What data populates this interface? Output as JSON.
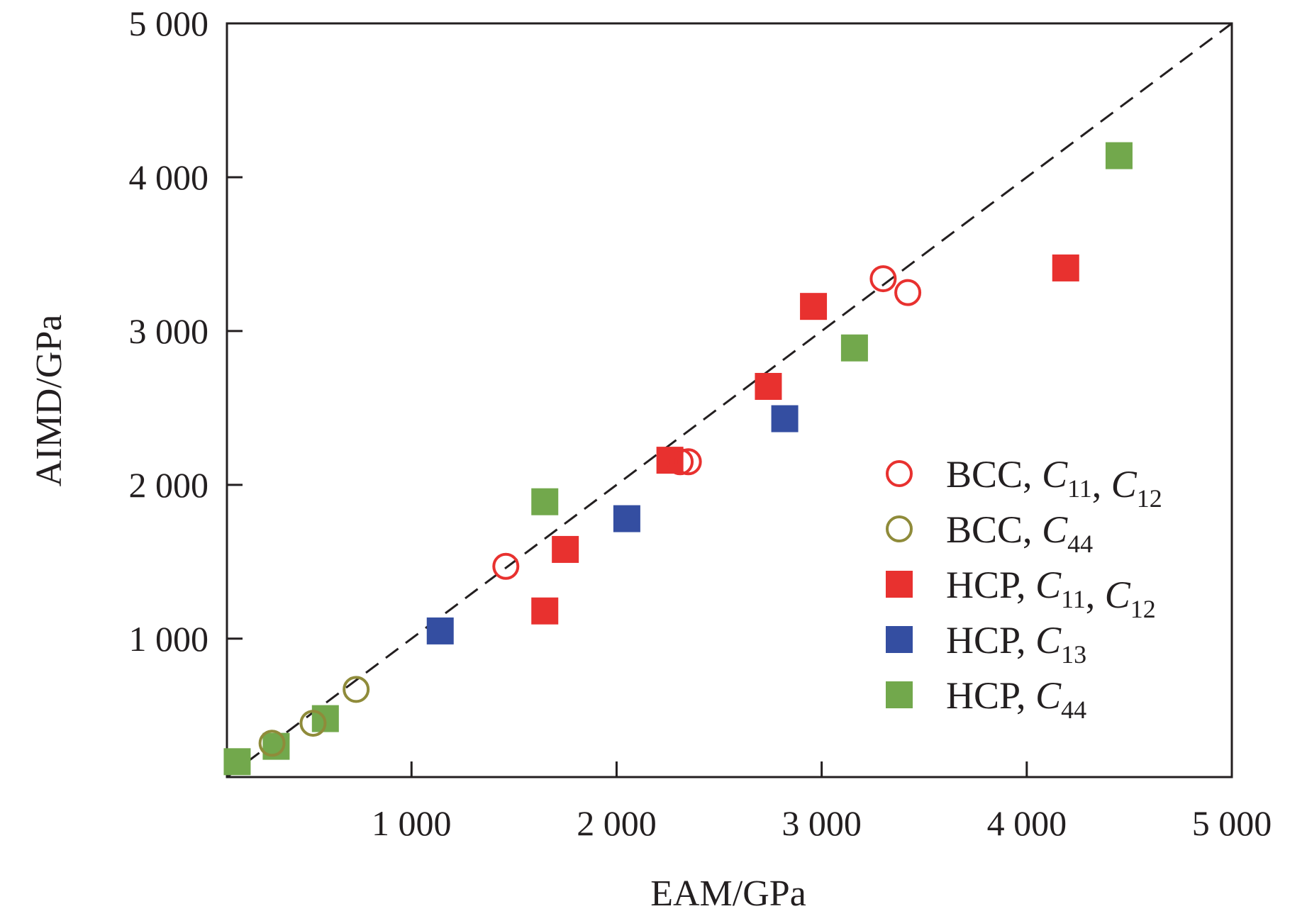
{
  "chart_data": {
    "type": "scatter",
    "xlabel": "EAM/GPa",
    "ylabel": "AIMD/GPa",
    "xlim": [
      100,
      5000
    ],
    "ylim": [
      100,
      5000
    ],
    "xticks": [
      1000,
      2000,
      3000,
      4000,
      5000
    ],
    "xtick_labels": [
      "1 000",
      "2 000",
      "3 000",
      "4 000",
      "5 000"
    ],
    "yticks": [
      1000,
      2000,
      3000,
      4000,
      5000
    ],
    "ytick_labels": [
      "1 000",
      "2 000",
      "3 000",
      "4 000",
      "5 000"
    ],
    "reference_line": {
      "style": "dashed",
      "from": [
        100,
        100
      ],
      "to": [
        5000,
        5000
      ]
    },
    "grid": false,
    "legend_position": "right",
    "colors": {
      "red": "#e8312f",
      "olive": "#8f8b3a",
      "blue": "#344ea1",
      "green": "#72a84c"
    },
    "series": [
      {
        "name": "BCC, C11, C12",
        "legend_label": {
          "prefix": "BCC, ",
          "terms": [
            {
              "sym": "C",
              "sub": "11"
            },
            {
              "sym": "C",
              "sub": "12"
            }
          ]
        },
        "marker": "circle-open",
        "color": "#e8312f",
        "points": [
          [
            1460,
            1470
          ],
          [
            2310,
            2150
          ],
          [
            2350,
            2150
          ],
          [
            3300,
            3340
          ],
          [
            3420,
            3250
          ]
        ]
      },
      {
        "name": "BCC, C44",
        "legend_label": {
          "prefix": "BCC, ",
          "terms": [
            {
              "sym": "C",
              "sub": "44"
            }
          ]
        },
        "marker": "circle-open",
        "color": "#8f8b3a",
        "points": [
          [
            730,
            670
          ],
          [
            520,
            450
          ],
          [
            320,
            320
          ]
        ]
      },
      {
        "name": "HCP, C11, C12",
        "legend_label": {
          "prefix": "HCP, ",
          "terms": [
            {
              "sym": "C",
              "sub": "11"
            },
            {
              "sym": "C",
              "sub": "12"
            }
          ]
        },
        "marker": "square",
        "color": "#e8312f",
        "points": [
          [
            1650,
            1180
          ],
          [
            1750,
            1580
          ],
          [
            2260,
            2160
          ],
          [
            2740,
            2640
          ],
          [
            2960,
            3160
          ],
          [
            4190,
            3410
          ]
        ]
      },
      {
        "name": "HCP, C13",
        "legend_label": {
          "prefix": "HCP, ",
          "terms": [
            {
              "sym": "C",
              "sub": "13"
            }
          ]
        },
        "marker": "square",
        "color": "#344ea1",
        "points": [
          [
            1140,
            1050
          ],
          [
            2050,
            1780
          ],
          [
            2820,
            2430
          ]
        ]
      },
      {
        "name": "HCP, C44",
        "legend_label": {
          "prefix": "HCP, ",
          "terms": [
            {
              "sym": "C",
              "sub": "44"
            }
          ]
        },
        "marker": "square",
        "color": "#72a84c",
        "points": [
          [
            150,
            200
          ],
          [
            340,
            300
          ],
          [
            580,
            480
          ],
          [
            1650,
            1890
          ],
          [
            3160,
            2890
          ],
          [
            4450,
            4140
          ]
        ]
      }
    ]
  }
}
